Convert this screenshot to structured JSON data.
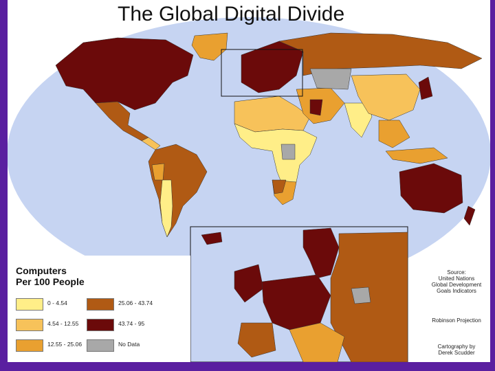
{
  "title": "The Global Digital Divide",
  "legend": {
    "title": "Computers\nPer 100 People",
    "items": [
      {
        "label": "0 - 4.54",
        "color": "#ffee88"
      },
      {
        "label": "4.54 - 12.55",
        "color": "#f7c25a"
      },
      {
        "label": "12.55 - 25.06",
        "color": "#e9a030"
      },
      {
        "label": "25.06 - 43.74",
        "color": "#b05a14"
      },
      {
        "label": "43.74 - 95",
        "color": "#6b0a0a"
      },
      {
        "label": "No Data",
        "color": "#a8a8a8"
      }
    ]
  },
  "credits": {
    "source": "Source:\nUnited Nations\nGlobal Development\nGoals Indicators",
    "projection": "Robinson Projection",
    "cartography": "Cartography by\nDerek Scudder"
  },
  "colors": {
    "ocean": "#c6d4f2",
    "frame": "#5a1fa0"
  }
}
